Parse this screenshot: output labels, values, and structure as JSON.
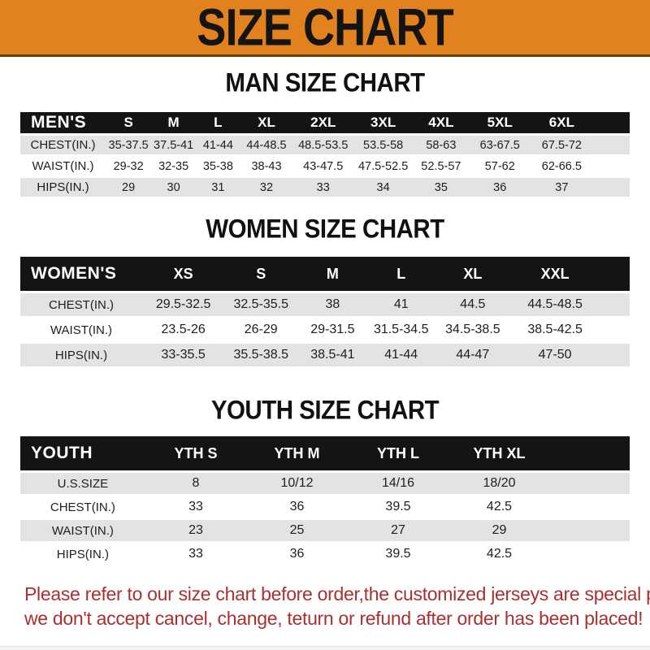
{
  "banner": {
    "title": "SIZE CHART"
  },
  "theme": {
    "banner_bg": "#E2821E",
    "banner_border": "#6E3D0D",
    "banner_text": "#141414",
    "header_bar_bg": "#141414",
    "header_bar_text": "#FFFFFF",
    "row_alt_bg": "#E3E3E3",
    "cell_text": "#1E1E1E",
    "note_color": "#A93030"
  },
  "sections": [
    {
      "key": "men",
      "heading": "MAN SIZE CHART",
      "header_label": "MEN'S",
      "columns": [
        "S",
        "M",
        "L",
        "XL",
        "2XL",
        "3XL",
        "4XL",
        "5XL",
        "6XL"
      ],
      "rows": [
        {
          "label": "CHEST(IN.)",
          "values": [
            "35-37.5",
            "37.5-41",
            "41-44",
            "44-48.5",
            "48.5-53.5",
            "53.5-58",
            "58-63",
            "63-67.5",
            "67.5-72"
          ]
        },
        {
          "label": "WAIST(IN.)",
          "values": [
            "29-32",
            "32-35",
            "35-38",
            "38-43",
            "43-47.5",
            "47.5-52.5",
            "52.5-57",
            "57-62",
            "62-66.5"
          ]
        },
        {
          "label": "HIPS(IN.)",
          "values": [
            "29",
            "30",
            "31",
            "32",
            "33",
            "34",
            "35",
            "36",
            "37"
          ]
        }
      ]
    },
    {
      "key": "women",
      "heading": "WOMEN SIZE CHART",
      "header_label": "WOMEN'S",
      "columns": [
        "XS",
        "S",
        "M",
        "L",
        "XL",
        "XXL"
      ],
      "rows": [
        {
          "label": "CHEST(IN.)",
          "values": [
            "29.5-32.5",
            "32.5-35.5",
            "38",
            "41",
            "44.5",
            "44.5-48.5"
          ]
        },
        {
          "label": "WAIST(IN.)",
          "values": [
            "23.5-26",
            "26-29",
            "29-31.5",
            "31.5-34.5",
            "34.5-38.5",
            "38.5-42.5"
          ]
        },
        {
          "label": "HIPS(IN.)",
          "values": [
            "33-35.5",
            "35.5-38.5",
            "38.5-41",
            "41-44",
            "44-47",
            "47-50"
          ]
        }
      ]
    },
    {
      "key": "youth",
      "heading": "YOUTH SIZE CHART",
      "header_label": "YOUTH",
      "columns": [
        "YTH S",
        "YTH M",
        "YTH L",
        "YTH XL"
      ],
      "rows": [
        {
          "label": "U.S.SIZE",
          "values": [
            "8",
            "10/12",
            "14/16",
            "18/20"
          ]
        },
        {
          "label": "CHEST(IN.)",
          "values": [
            "33",
            "36",
            "39.5",
            "42.5"
          ]
        },
        {
          "label": "WAIST(IN.)",
          "values": [
            "23",
            "25",
            "27",
            "29"
          ]
        },
        {
          "label": "HIPS(IN.)",
          "values": [
            "33",
            "36",
            "39.5",
            "42.5"
          ]
        }
      ]
    }
  ],
  "footer": {
    "line1": "Please refer to our size chart before order,the customized jerseys are special products,",
    "line2": "we don't accept cancel, change, teturn or refund after order has been placed!"
  }
}
